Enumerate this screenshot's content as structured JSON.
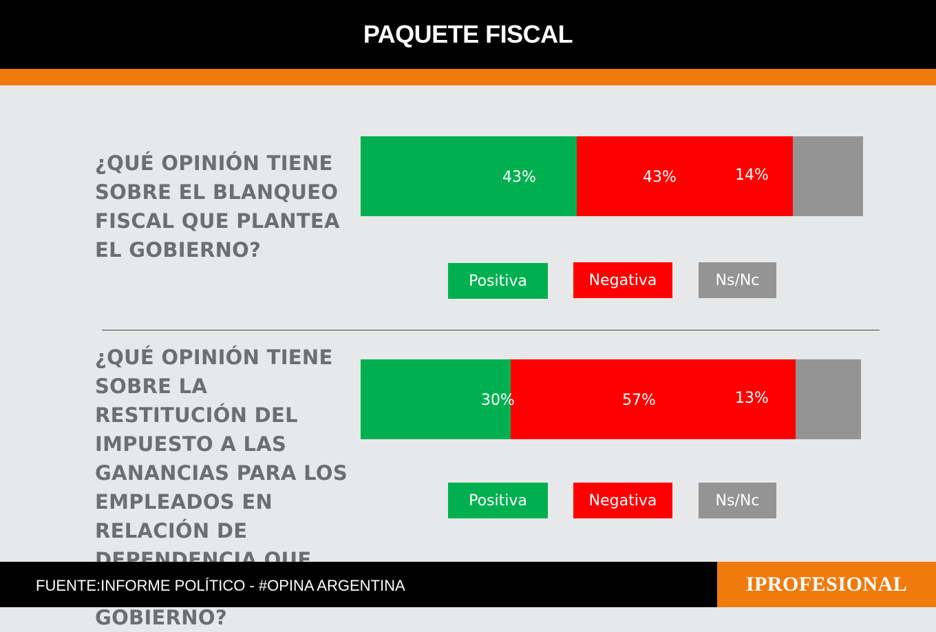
{
  "header": {
    "title": "PAQUETE FISCAL"
  },
  "colors": {
    "positive": "#00b050",
    "negative": "#ff0000",
    "nsnc": "#949494",
    "accent": "#ef7b0f"
  },
  "chart_data": [
    {
      "type": "bar",
      "orientation": "horizontal-stacked",
      "title": "¿QUÉ OPINIÓN TIENE SOBRE EL BLANQUEO FISCAL QUE PLANTEA EL GOBIERNO?",
      "categories": [
        "Positiva",
        "Negativa",
        "Ns/Nc"
      ],
      "values": [
        43,
        43,
        14
      ],
      "labels": [
        "43%",
        "43%",
        "14%"
      ],
      "legend": [
        "Positiva",
        "Negativa",
        "Ns/Nc"
      ]
    },
    {
      "type": "bar",
      "orientation": "horizontal-stacked",
      "title": "¿QUÉ OPINIÓN TIENE SOBRE LA RESTITUCIÓN DEL IMPUESTO A LAS GANANCIAS PARA LOS EMPLEADOS EN RELACIÓN DE DEPENDENCIA QUE PLANTEA EL GOBIERNO?",
      "categories": [
        "Positiva",
        "Negativa",
        "Ns/Nc"
      ],
      "values": [
        30,
        57,
        13
      ],
      "labels": [
        "30%",
        "57%",
        "13%"
      ],
      "legend": [
        "Positiva",
        "Negativa",
        "Ns/Nc"
      ]
    }
  ],
  "footer": {
    "source": "FUENTE:INFORME POLÍTICO - #OPINA ARGENTINA",
    "brand": "IPROFESIONAL"
  }
}
